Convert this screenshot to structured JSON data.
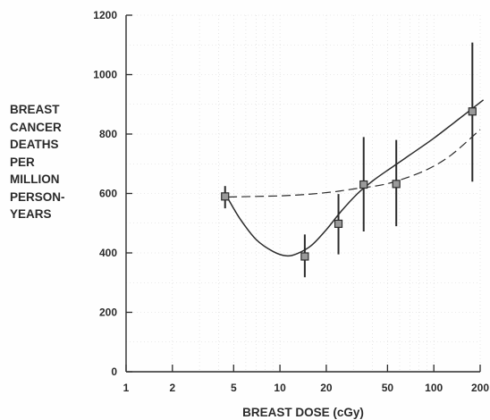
{
  "chart_data": {
    "type": "scatter",
    "xlabel": "BREAST DOSE (cGy)",
    "ylabel_lines": [
      "BREAST",
      "CANCER",
      "DEATHS",
      "PER",
      "MILLION",
      "PERSON-",
      "YEARS"
    ],
    "x_scale": "log",
    "xlim": [
      1,
      200
    ],
    "ylim": [
      0,
      1200
    ],
    "x_ticks": [
      {
        "value": 1,
        "label": "1"
      },
      {
        "value": 2,
        "label": "2"
      },
      {
        "value": 5,
        "label": "5"
      },
      {
        "value": 10,
        "label": "10"
      },
      {
        "value": 20,
        "label": "20"
      },
      {
        "value": 50,
        "label": "50"
      },
      {
        "value": 100,
        "label": "100"
      },
      {
        "value": 200,
        "label": "200"
      }
    ],
    "y_ticks": [
      {
        "value": 0,
        "label": "0"
      },
      {
        "value": 200,
        "label": "200"
      },
      {
        "value": 400,
        "label": "400"
      },
      {
        "value": 600,
        "label": "600"
      },
      {
        "value": 800,
        "label": "800"
      },
      {
        "value": 1000,
        "label": "1000"
      },
      {
        "value": 1200,
        "label": "1200"
      }
    ],
    "grid": true,
    "points": [
      {
        "x": 4.4,
        "y": 590,
        "low": 550,
        "high": 625
      },
      {
        "x": 14.5,
        "y": 388,
        "low": 318,
        "high": 462
      },
      {
        "x": 24,
        "y": 498,
        "low": 395,
        "high": 598
      },
      {
        "x": 35,
        "y": 630,
        "low": 472,
        "high": 790
      },
      {
        "x": 57,
        "y": 632,
        "low": 490,
        "high": 780
      },
      {
        "x": 178,
        "y": 876,
        "low": 640,
        "high": 1108
      }
    ],
    "fits": [
      {
        "style": "solid",
        "x": [
          4.6,
          5.5,
          7,
          9,
          11,
          13,
          16,
          20,
          25,
          32,
          40,
          50,
          70,
          100,
          140,
          210
        ],
        "y": [
          582,
          515,
          445,
          405,
          390,
          398,
          425,
          478,
          540,
          600,
          642,
          678,
          730,
          786,
          844,
          915
        ]
      },
      {
        "style": "dashed",
        "x": [
          4.6,
          7,
          10,
          15,
          22,
          30,
          45,
          60,
          90,
          130,
          200
        ],
        "y": [
          588,
          590,
          592,
          597,
          605,
          615,
          628,
          645,
          680,
          730,
          815
        ]
      }
    ]
  },
  "colors": {
    "ink": "#2b2b2b",
    "marker_fill": "#9a9a9a",
    "grid": "#d6d6d6",
    "background": "#fefefe"
  }
}
